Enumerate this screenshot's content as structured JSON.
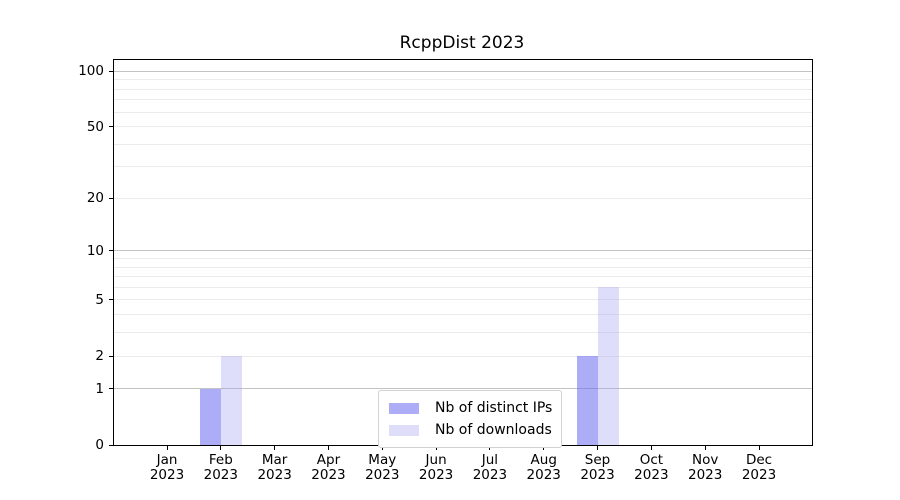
{
  "title": "RcppDist 2023",
  "chart_data": {
    "type": "bar",
    "title": "RcppDist 2023",
    "categories": [
      "Jan",
      "Feb",
      "Mar",
      "Apr",
      "May",
      "Jun",
      "Jul",
      "Aug",
      "Sep",
      "Oct",
      "Nov",
      "Dec"
    ],
    "category_year": "2023",
    "series": [
      {
        "name": "Nb of distinct IPs",
        "color": "rgba(106,106,240,0.55)",
        "composite_hex": "#adadf5",
        "values": [
          0,
          1,
          0,
          0,
          0,
          0,
          0,
          0,
          2,
          0,
          0,
          0
        ]
      },
      {
        "name": "Nb of downloads",
        "color": "rgba(160,160,240,0.35)",
        "composite_hex": "#dedefa",
        "values": [
          0,
          2,
          0,
          0,
          0,
          0,
          0,
          0,
          6,
          0,
          0,
          0
        ]
      }
    ],
    "yscale": "log1p",
    "ylim": [
      0,
      115
    ],
    "y_ticks": [
      0,
      1,
      2,
      5,
      10,
      20,
      50,
      100
    ],
    "y_minor_gridlines": [
      3,
      4,
      6,
      7,
      8,
      9,
      30,
      40,
      60,
      70,
      80,
      90
    ],
    "y_emphasized_gridlines": [
      1,
      10,
      100
    ],
    "grid": true,
    "legend_position": "bottom-center",
    "xlabel": "",
    "ylabel": ""
  },
  "colors": {
    "background": "#ffffff",
    "axis_frame": "#000000",
    "gridline_light": "#ebebeb",
    "gridline_dark": "#c3c3c3",
    "text": "#000000",
    "legend_border": "#d2d2d2"
  }
}
